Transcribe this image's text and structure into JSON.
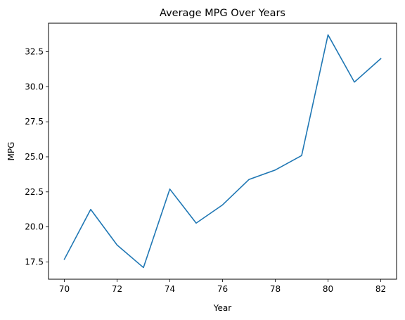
{
  "chart_data": {
    "type": "line",
    "title": "Average MPG Over Years",
    "xlabel": "Year",
    "ylabel": "MPG",
    "x": [
      70,
      71,
      72,
      73,
      74,
      75,
      76,
      77,
      78,
      79,
      80,
      81,
      82
    ],
    "series": [
      {
        "values": [
          17.69,
          21.25,
          18.71,
          17.1,
          22.7,
          20.27,
          21.57,
          23.38,
          24.06,
          25.09,
          33.7,
          30.33,
          32.0
        ],
        "color": "#1f77b4"
      }
    ],
    "xlim": [
      69.4,
      82.6
    ],
    "ylim": [
      16.27,
      34.53
    ],
    "xticks": [
      70,
      72,
      74,
      76,
      78,
      80,
      82
    ],
    "xtick_labels": [
      "70",
      "72",
      "74",
      "76",
      "78",
      "80",
      "82"
    ],
    "yticks": [
      17.5,
      20.0,
      22.5,
      25.0,
      27.5,
      30.0,
      32.5
    ],
    "ytick_labels": [
      "17.5",
      "20.0",
      "22.5",
      "25.0",
      "27.5",
      "30.0",
      "32.5"
    ],
    "grid": false,
    "legend": "none"
  }
}
